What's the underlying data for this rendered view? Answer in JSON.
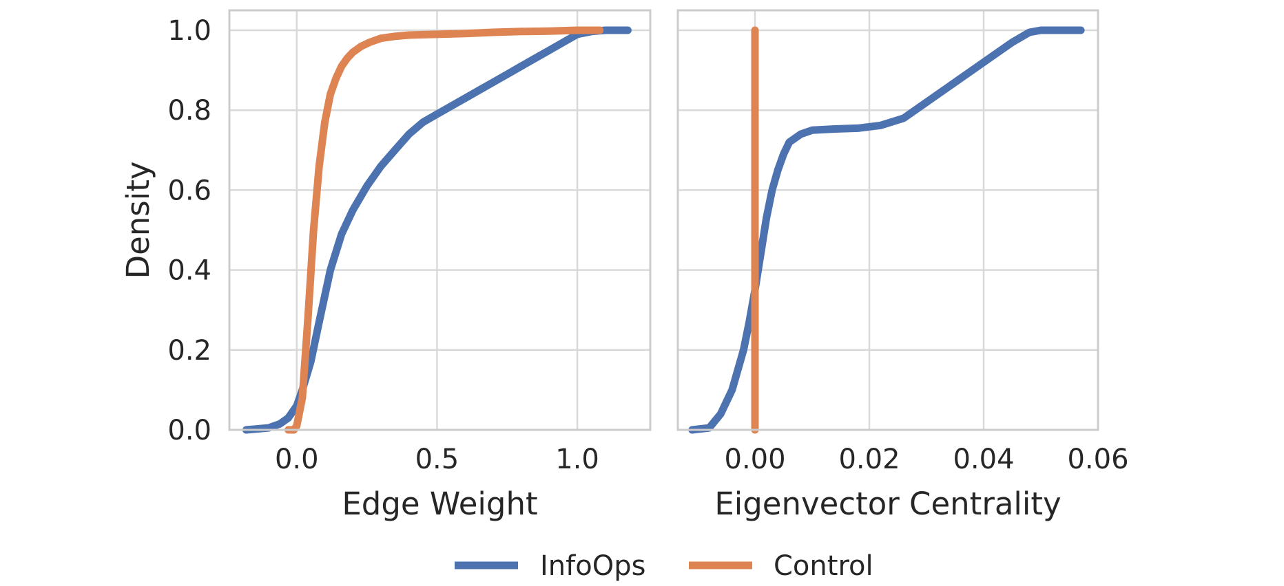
{
  "colors": {
    "infoops": "#4c72b0",
    "control": "#dd8452",
    "grid": "#d9d9d9",
    "frame": "#cccccc",
    "text": "#262626"
  },
  "legend": {
    "placement": "bottom-center",
    "items": [
      "InfoOps",
      "Control"
    ]
  },
  "chart_data": [
    {
      "type": "line",
      "title": "",
      "xlabel": "Edge Weight",
      "ylabel": "Density",
      "xlim": [
        -0.24,
        1.26
      ],
      "ylim": [
        0,
        1.05
      ],
      "xticks": [
        0.0,
        0.5,
        1.0
      ],
      "xtick_labels": [
        "0.0",
        "0.5",
        "1.0"
      ],
      "yticks": [
        0.0,
        0.2,
        0.4,
        0.6,
        0.8,
        1.0
      ],
      "ytick_labels": [
        "0.0",
        "0.2",
        "0.4",
        "0.6",
        "0.8",
        "1.0"
      ],
      "grid": true,
      "series": [
        {
          "name": "InfoOps",
          "x": [
            -0.18,
            -0.1,
            -0.06,
            -0.03,
            0.0,
            0.02,
            0.05,
            0.08,
            0.12,
            0.16,
            0.2,
            0.25,
            0.3,
            0.35,
            0.4,
            0.45,
            0.5,
            0.55,
            0.6,
            0.65,
            0.7,
            0.75,
            0.8,
            0.85,
            0.9,
            0.95,
            1.0,
            1.05,
            1.1,
            1.18
          ],
          "y": [
            0.0,
            0.005,
            0.015,
            0.03,
            0.06,
            0.1,
            0.17,
            0.27,
            0.4,
            0.49,
            0.55,
            0.61,
            0.66,
            0.7,
            0.74,
            0.77,
            0.79,
            0.81,
            0.83,
            0.85,
            0.87,
            0.89,
            0.91,
            0.93,
            0.95,
            0.97,
            0.99,
            0.997,
            1.0,
            1.0
          ]
        },
        {
          "name": "Control",
          "x": [
            -0.03,
            -0.01,
            0.0,
            0.02,
            0.04,
            0.06,
            0.08,
            0.1,
            0.12,
            0.14,
            0.16,
            0.18,
            0.2,
            0.23,
            0.26,
            0.3,
            0.35,
            0.4,
            0.5,
            0.6,
            0.7,
            0.8,
            0.9,
            1.0,
            1.08
          ],
          "y": [
            0.0,
            0.0,
            0.01,
            0.08,
            0.28,
            0.5,
            0.66,
            0.77,
            0.84,
            0.88,
            0.91,
            0.93,
            0.945,
            0.96,
            0.97,
            0.98,
            0.985,
            0.988,
            0.99,
            0.992,
            0.995,
            0.997,
            0.998,
            1.0,
            1.0
          ]
        }
      ]
    },
    {
      "type": "line",
      "title": "",
      "xlabel": "Eigenvector Centrality",
      "ylabel": "",
      "xlim": [
        -0.0135,
        0.06
      ],
      "ylim": [
        0,
        1.05
      ],
      "xticks": [
        0.0,
        0.02,
        0.04,
        0.06
      ],
      "xtick_labels": [
        "0.00",
        "0.02",
        "0.04",
        "0.06"
      ],
      "grid": true,
      "series": [
        {
          "name": "InfoOps",
          "x": [
            -0.011,
            -0.008,
            -0.006,
            -0.004,
            -0.002,
            -0.001,
            0.0,
            0.001,
            0.002,
            0.003,
            0.004,
            0.005,
            0.006,
            0.008,
            0.01,
            0.014,
            0.018,
            0.022,
            0.026,
            0.03,
            0.034,
            0.038,
            0.042,
            0.045,
            0.048,
            0.05,
            0.052,
            0.054,
            0.057
          ],
          "y": [
            0.0,
            0.005,
            0.04,
            0.1,
            0.2,
            0.27,
            0.35,
            0.44,
            0.53,
            0.6,
            0.65,
            0.69,
            0.72,
            0.74,
            0.75,
            0.753,
            0.755,
            0.762,
            0.78,
            0.82,
            0.86,
            0.9,
            0.94,
            0.97,
            0.995,
            1.0,
            1.0,
            1.0,
            1.0
          ]
        },
        {
          "name": "Control",
          "x": [
            0.0,
            0.0
          ],
          "y": [
            0.0,
            1.0
          ]
        }
      ]
    }
  ]
}
